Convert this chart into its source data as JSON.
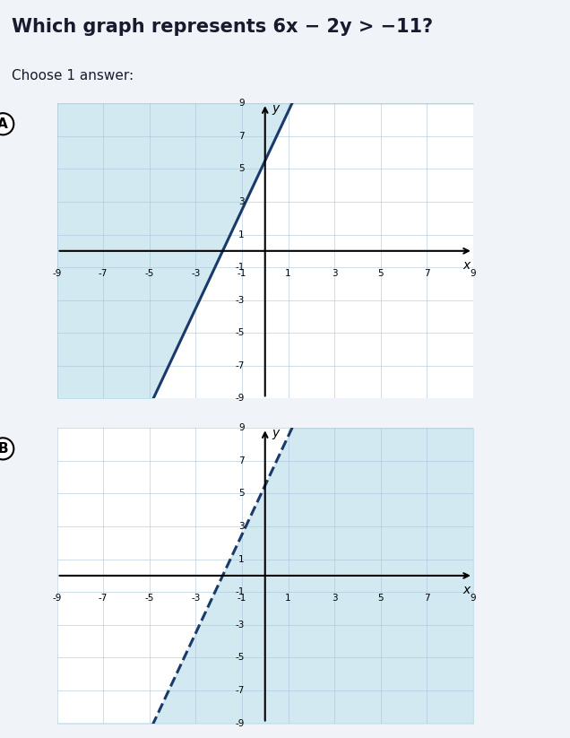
{
  "question_text": "Which graph represents 6x − 2y > −11?",
  "choose_text": "Choose 1 answer:",
  "background_color": "#f0f4f8",
  "graph_bg": "#ffffff",
  "shade_color": "#add8e6",
  "shade_alpha": 0.55,
  "axis_range": [
    -9,
    9
  ],
  "tick_step": 2,
  "slope": 3,
  "intercept": 5.5,
  "line_color": "#1a3a6b",
  "label_A": "A",
  "label_B": "B",
  "separator_color": "#5b7fa6"
}
